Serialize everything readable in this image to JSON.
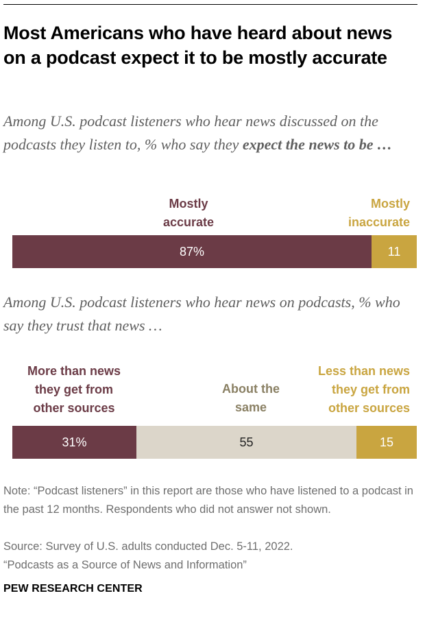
{
  "colors": {
    "maroon": "#6b3b46",
    "gold": "#c9a540",
    "beige": "#dcd6ca",
    "middle_label": "#8a8064",
    "note_text": "#6e6e6e",
    "subtitle_text": "#5f5f5f"
  },
  "header": {
    "title": "Most Americans who have heard about news on a podcast expect it to be mostly accurate",
    "subtitle_1_plain": "Among U.S. podcast listeners who hear news discussed on the podcasts they listen to, % who say they ",
    "subtitle_1_bold": "expect the news to be …",
    "subtitle_2": "Among U.S. podcast listeners who hear news on podcasts, % who say they trust that news …"
  },
  "chart_data": [
    {
      "type": "bar",
      "orientation": "horizontal",
      "stacked": true,
      "title": "Among U.S. podcast listeners who hear news discussed on the podcasts they listen to, % who say they expect the news to be …",
      "categories": [
        "Mostly accurate",
        "Mostly inaccurate"
      ],
      "values": [
        87,
        11
      ],
      "value_labels": [
        "87%",
        "11"
      ],
      "legend_labels": [
        "Mostly\naccurate",
        "Mostly\ninaccurate"
      ]
    },
    {
      "type": "bar",
      "orientation": "horizontal",
      "stacked": true,
      "title": "Among U.S. podcast listeners who hear news on podcasts, % who say they trust that news …",
      "categories": [
        "More than news they get from other sources",
        "About the same",
        "Less than news they get from other sources"
      ],
      "values": [
        31,
        55,
        15
      ],
      "value_labels": [
        "31%",
        "55",
        "15"
      ],
      "legend_labels": [
        "More than news\nthey get from\nother sources",
        "About the\nsame",
        "Less than news\nthey get from\nother sources"
      ]
    }
  ],
  "footer": {
    "note": "Note: “Podcast listeners” in this report are those who have listened to a podcast in the past 12 months. Respondents who did not answer not shown.",
    "source": "Source: Survey of U.S. adults conducted Dec. 5-11, 2022.\n“Podcasts as a Source of News and Information”",
    "brand": "PEW RESEARCH CENTER"
  }
}
